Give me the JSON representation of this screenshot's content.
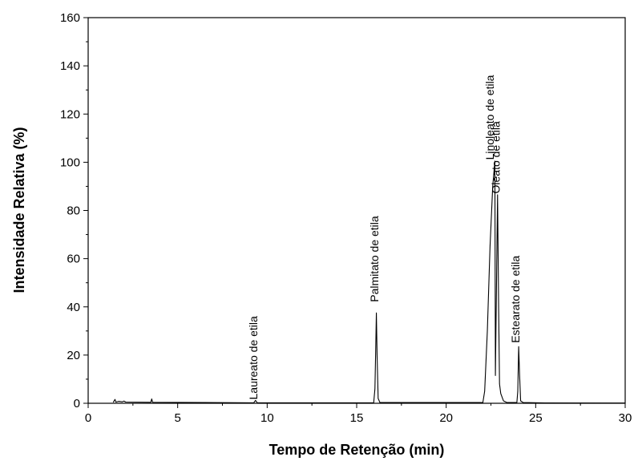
{
  "chart_data": {
    "type": "line",
    "title": "",
    "xlabel": "Tempo de Retenção (min)",
    "ylabel": "Intensidade Relativa (%)",
    "xlim": [
      0,
      30
    ],
    "ylim": [
      0,
      160
    ],
    "x_ticks": [
      0,
      5,
      10,
      15,
      20,
      25,
      30
    ],
    "y_ticks": [
      0,
      20,
      40,
      60,
      80,
      100,
      120,
      140,
      160
    ],
    "grid": false,
    "line_color": "#000000",
    "series": [
      {
        "points": [
          [
            1.4,
            0.4
          ],
          [
            1.5,
            1.6
          ],
          [
            1.55,
            0.5
          ],
          [
            1.7,
            0.8
          ],
          [
            1.9,
            0.6
          ],
          [
            2.0,
            0.9
          ],
          [
            2.1,
            0.5
          ],
          [
            3.5,
            0.4
          ],
          [
            3.55,
            1.8
          ],
          [
            3.6,
            0.4
          ],
          [
            9.25,
            0.2
          ],
          [
            9.35,
            1.2
          ],
          [
            9.45,
            0.2
          ],
          [
            15.95,
            0.2
          ],
          [
            16.02,
            6
          ],
          [
            16.07,
            25
          ],
          [
            16.1,
            37.5
          ],
          [
            16.14,
            20
          ],
          [
            16.2,
            2
          ],
          [
            16.3,
            0.3
          ],
          [
            22.05,
            0.3
          ],
          [
            22.15,
            5
          ],
          [
            22.3,
            30
          ],
          [
            22.45,
            65
          ],
          [
            22.6,
            90
          ],
          [
            22.72,
            100.5
          ],
          [
            22.75,
            11.5
          ],
          [
            22.82,
            55
          ],
          [
            22.87,
            86.5
          ],
          [
            22.93,
            40
          ],
          [
            22.98,
            8
          ],
          [
            23.05,
            4
          ],
          [
            23.2,
            1
          ],
          [
            23.4,
            0.3
          ],
          [
            23.95,
            0.3
          ],
          [
            24.0,
            5
          ],
          [
            24.05,
            23.5
          ],
          [
            24.1,
            12
          ],
          [
            24.16,
            1
          ],
          [
            24.3,
            0.3
          ],
          [
            25.5,
            0.15
          ],
          [
            30.0,
            0.1
          ]
        ]
      }
    ],
    "annotations": [
      {
        "text": "Laureato de etila",
        "x": 9.45,
        "y": 1.5
      },
      {
        "text": "Palmitato de etila",
        "x": 16.2,
        "y": 42
      },
      {
        "text": "Linoleato de etila",
        "x": 22.65,
        "y": 101
      },
      {
        "text": "Oleato de etila",
        "x": 23.0,
        "y": 87
      },
      {
        "text": "Estearato de etila",
        "x": 24.1,
        "y": 25
      }
    ]
  }
}
